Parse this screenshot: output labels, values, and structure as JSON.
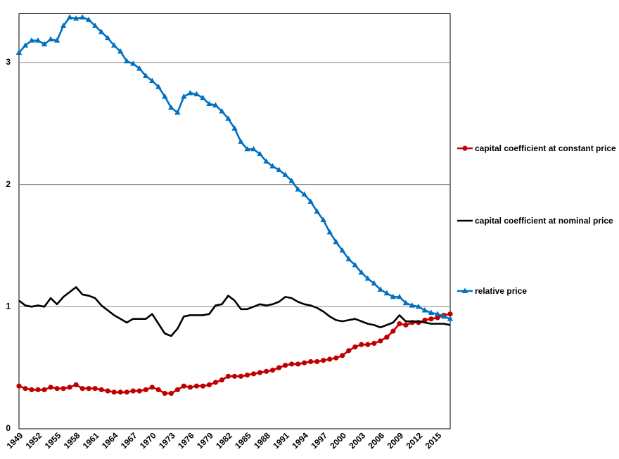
{
  "chart_data": {
    "type": "line",
    "categories": [
      "1949",
      null,
      null,
      "1952",
      null,
      null,
      "1955",
      null,
      null,
      "1958",
      null,
      null,
      "1961",
      null,
      null,
      "1964",
      null,
      null,
      "1967",
      null,
      null,
      "1970",
      null,
      null,
      "1973",
      null,
      null,
      "1976",
      null,
      null,
      "1979",
      null,
      null,
      "1982",
      null,
      null,
      "1985",
      null,
      null,
      "1988",
      null,
      null,
      "1991",
      null,
      null,
      "1994",
      null,
      null,
      "1997",
      null,
      null,
      "2000",
      null,
      null,
      "2003",
      null,
      null,
      "2006",
      null,
      null,
      "2009",
      null,
      null,
      "2012",
      null,
      null,
      "2015",
      null,
      null
    ],
    "series": [
      {
        "name": "capital coefficient at constant price",
        "color": "#c00000",
        "marker": "circle",
        "values": [
          0.35,
          0.33,
          0.32,
          0.32,
          0.32,
          0.34,
          0.33,
          0.33,
          0.34,
          0.36,
          0.33,
          0.33,
          0.33,
          0.32,
          0.31,
          0.3,
          0.3,
          0.3,
          0.31,
          0.31,
          0.32,
          0.34,
          0.32,
          0.29,
          0.29,
          0.32,
          0.35,
          0.34,
          0.35,
          0.35,
          0.36,
          0.38,
          0.4,
          0.43,
          0.43,
          0.43,
          0.44,
          0.45,
          0.46,
          0.47,
          0.48,
          0.5,
          0.52,
          0.53,
          0.53,
          0.54,
          0.55,
          0.55,
          0.56,
          0.57,
          0.58,
          0.6,
          0.64,
          0.67,
          0.69,
          0.69,
          0.7,
          0.72,
          0.75,
          0.8,
          0.86,
          0.85,
          0.87,
          0.87,
          0.89,
          0.9,
          0.91,
          0.93,
          0.94
        ]
      },
      {
        "name": "capital coefficient at nominal price",
        "color": "#000000",
        "marker": "none",
        "values": [
          1.05,
          1.01,
          1.0,
          1.01,
          1.0,
          1.07,
          1.02,
          1.08,
          1.12,
          1.16,
          1.1,
          1.09,
          1.07,
          1.01,
          0.97,
          0.93,
          0.9,
          0.87,
          0.9,
          0.9,
          0.9,
          0.94,
          0.86,
          0.78,
          0.76,
          0.82,
          0.92,
          0.93,
          0.93,
          0.93,
          0.94,
          1.01,
          1.02,
          1.09,
          1.05,
          0.98,
          0.98,
          1.0,
          1.02,
          1.01,
          1.02,
          1.04,
          1.08,
          1.07,
          1.04,
          1.02,
          1.01,
          0.99,
          0.96,
          0.92,
          0.89,
          0.88,
          0.89,
          0.9,
          0.88,
          0.86,
          0.85,
          0.83,
          0.85,
          0.87,
          0.93,
          0.88,
          0.88,
          0.88,
          0.87,
          0.86,
          0.86,
          0.86,
          0.85
        ]
      },
      {
        "name": "relative price",
        "color": "#0070c0",
        "marker": "triangle",
        "values": [
          3.08,
          3.14,
          3.18,
          3.18,
          3.15,
          3.19,
          3.18,
          3.3,
          3.37,
          3.36,
          3.37,
          3.35,
          3.3,
          3.25,
          3.2,
          3.14,
          3.09,
          3.01,
          2.99,
          2.95,
          2.89,
          2.85,
          2.8,
          2.72,
          2.63,
          2.59,
          2.72,
          2.75,
          2.74,
          2.71,
          2.66,
          2.65,
          2.6,
          2.54,
          2.46,
          2.35,
          2.29,
          2.29,
          2.25,
          2.19,
          2.15,
          2.12,
          2.08,
          2.03,
          1.96,
          1.92,
          1.86,
          1.78,
          1.71,
          1.61,
          1.53,
          1.46,
          1.39,
          1.34,
          1.28,
          1.23,
          1.19,
          1.14,
          1.11,
          1.08,
          1.08,
          1.03,
          1.01,
          1.0,
          0.97,
          0.95,
          0.94,
          0.92,
          0.9
        ]
      }
    ],
    "ylim": [
      0,
      3.4
    ],
    "yticks": [
      0,
      1,
      2,
      3
    ],
    "grid": true,
    "legend": "right"
  }
}
